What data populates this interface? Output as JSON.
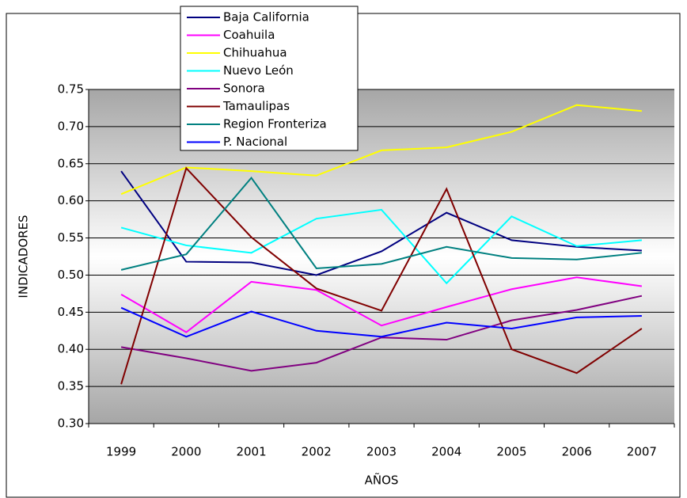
{
  "chart_data": {
    "type": "line",
    "x_label": "AÑOS",
    "y_label": "INDICADORES",
    "categories": [
      "1999",
      "2000",
      "2001",
      "2002",
      "2003",
      "2004",
      "2005",
      "2006",
      "2007"
    ],
    "series": [
      {
        "name": "Baja California",
        "color": "#000080",
        "values": [
          0.64,
          0.518,
          0.517,
          0.5,
          0.532,
          0.584,
          0.547,
          0.538,
          0.533
        ]
      },
      {
        "name": "Coahuila",
        "color": "#ff00ff",
        "values": [
          0.474,
          0.423,
          0.491,
          0.48,
          0.432,
          0.457,
          0.481,
          0.497,
          0.485
        ]
      },
      {
        "name": "Chihuahua",
        "color": "#ffff00",
        "values": [
          0.609,
          0.645,
          0.64,
          0.634,
          0.668,
          0.672,
          0.693,
          0.729,
          0.721
        ]
      },
      {
        "name": "Nuevo León",
        "color": "#00ffff",
        "values": [
          0.564,
          0.54,
          0.53,
          0.576,
          0.588,
          0.489,
          0.579,
          0.539,
          0.547
        ]
      },
      {
        "name": "Sonora",
        "color": "#800080",
        "values": [
          0.403,
          0.388,
          0.371,
          0.382,
          0.416,
          0.413,
          0.439,
          0.453,
          0.472
        ]
      },
      {
        "name": "Tamaulipas",
        "color": "#800000",
        "values": [
          0.353,
          0.644,
          0.551,
          0.482,
          0.452,
          0.616,
          0.4,
          0.368,
          0.428
        ]
      },
      {
        "name": "Region Fronteriza",
        "color": "#008080",
        "values": [
          0.507,
          0.528,
          0.631,
          0.509,
          0.515,
          0.538,
          0.523,
          0.521,
          0.53
        ]
      },
      {
        "name": "P. Nacional",
        "color": "#0000ff",
        "values": [
          0.456,
          0.417,
          0.451,
          0.425,
          0.417,
          0.436,
          0.428,
          0.443,
          0.445
        ]
      }
    ],
    "ylim": [
      0.3,
      0.75
    ],
    "yticks": [
      {
        "value": 0.3,
        "label": "0.30"
      },
      0.35,
      {
        "value": 0.4,
        "label": "0.40"
      },
      0.45,
      {
        "value": 0.5,
        "label": "0.50"
      },
      0.55,
      {
        "value": 0.6,
        "label": "0.60"
      },
      0.65,
      {
        "value": 0.7,
        "label": "0.70"
      },
      0.75
    ],
    "grid": true,
    "legend": "top"
  }
}
